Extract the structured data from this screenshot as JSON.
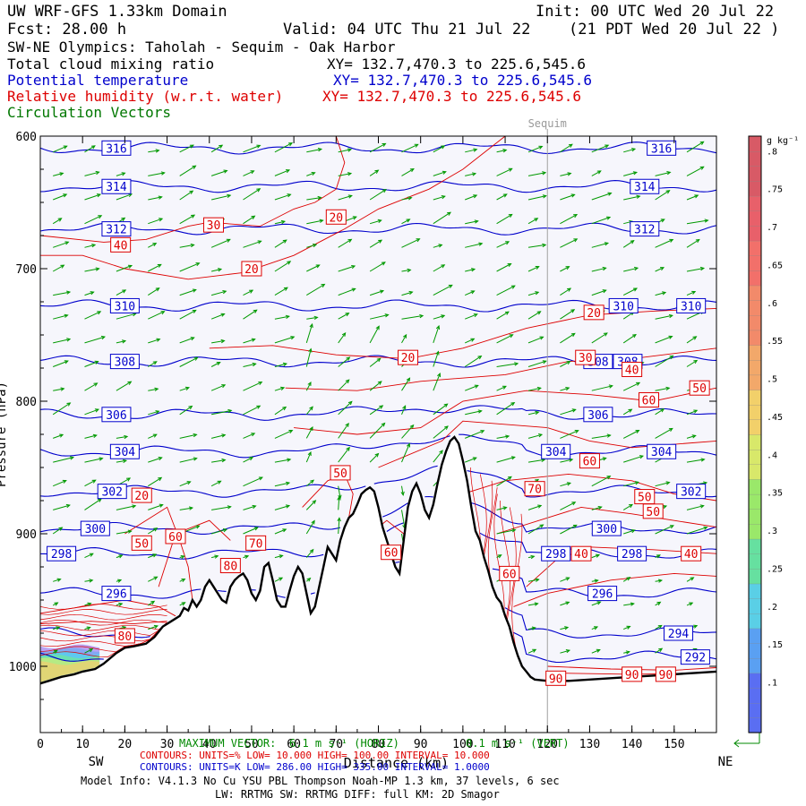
{
  "header": {
    "title": "UW WRF-GFS 1.33km Domain",
    "init": "Init: 00 UTC Wed 20 Jul 22",
    "fcst": "Fcst:   28.00 h",
    "valid": "Valid: 04 UTC Thu 21 Jul 22",
    "valid_local": "(21 PDT Wed 20 Jul 22  )",
    "cross_section": "SW-NE Olympics: Taholah - Sequim - Oak Harbor",
    "fields": [
      {
        "name": "Total cloud mixing ratio",
        "xy": "XY= 132.7,470.3 to 225.6,545.6",
        "color": "#000000"
      },
      {
        "name": "Potential temperature",
        "xy": "XY= 132.7,470.3 to 225.6,545.6",
        "color": "#0000cc"
      },
      {
        "name": "Relative humidity (w.r.t. water)",
        "xy": "XY= 132.7,470.3 to 225.6,545.6",
        "color": "#dd0000"
      },
      {
        "name": "Circulation Vectors",
        "xy": "",
        "color": "#007700"
      }
    ]
  },
  "chart_data": {
    "type": "cross-section",
    "marker_label": "Sequim",
    "marker_x": 120,
    "xlim": [
      0,
      160
    ],
    "ylim_hpa": [
      1050,
      600
    ],
    "x_ticks": [
      0,
      10,
      20,
      30,
      40,
      50,
      60,
      70,
      80,
      90,
      100,
      110,
      120,
      130,
      140,
      150
    ],
    "y_ticks": [
      {
        "value": 600,
        "label": "600"
      },
      {
        "value": 700,
        "label": "700"
      },
      {
        "value": 800,
        "label": "800"
      },
      {
        "value": 900,
        "label": "900"
      },
      {
        "value": 1000,
        "label": "1000"
      }
    ],
    "xlabel": "Distance (km)",
    "ylabel": "Pressure (hPa)",
    "left_end": "SW",
    "right_end": "NE",
    "colorbar": {
      "unit": "g kg⁻¹",
      "labels": [
        ".1",
        ".15",
        ".2",
        ".25",
        ".3",
        ".35",
        ".4",
        ".45",
        ".5",
        ".55",
        ".6",
        ".65",
        ".7",
        ".75",
        ".8"
      ]
    },
    "terrain_hpa": [
      [
        0,
        1013
      ],
      [
        2,
        1011
      ],
      [
        5,
        1008
      ],
      [
        8,
        1006
      ],
      [
        10,
        1004
      ],
      [
        13,
        1002
      ],
      [
        15,
        998
      ],
      [
        18,
        990
      ],
      [
        20,
        986
      ],
      [
        22,
        985
      ],
      [
        25,
        983
      ],
      [
        27,
        978
      ],
      [
        29,
        970
      ],
      [
        31,
        966
      ],
      [
        33,
        962
      ],
      [
        34,
        956
      ],
      [
        35,
        958
      ],
      [
        36,
        950
      ],
      [
        37,
        955
      ],
      [
        38,
        950
      ],
      [
        39,
        940
      ],
      [
        40,
        935
      ],
      [
        41,
        940
      ],
      [
        42,
        945
      ],
      [
        43,
        950
      ],
      [
        44,
        952
      ],
      [
        45,
        940
      ],
      [
        46,
        935
      ],
      [
        47,
        932
      ],
      [
        48,
        930
      ],
      [
        49,
        935
      ],
      [
        50,
        945
      ],
      [
        51,
        950
      ],
      [
        52,
        943
      ],
      [
        53,
        925
      ],
      [
        54,
        922
      ],
      [
        55,
        935
      ],
      [
        56,
        950
      ],
      [
        57,
        955
      ],
      [
        58,
        955
      ],
      [
        59,
        943
      ],
      [
        60,
        932
      ],
      [
        61,
        925
      ],
      [
        62,
        930
      ],
      [
        63,
        945
      ],
      [
        64,
        960
      ],
      [
        65,
        955
      ],
      [
        66,
        940
      ],
      [
        67,
        925
      ],
      [
        68,
        910
      ],
      [
        69,
        915
      ],
      [
        70,
        920
      ],
      [
        71,
        905
      ],
      [
        72,
        895
      ],
      [
        73,
        888
      ],
      [
        74,
        885
      ],
      [
        75,
        878
      ],
      [
        76,
        870
      ],
      [
        77,
        867
      ],
      [
        78,
        865
      ],
      [
        79,
        868
      ],
      [
        80,
        880
      ],
      [
        81,
        895
      ],
      [
        82,
        905
      ],
      [
        83,
        915
      ],
      [
        84,
        925
      ],
      [
        85,
        930
      ],
      [
        86,
        905
      ],
      [
        87,
        880
      ],
      [
        88,
        868
      ],
      [
        89,
        862
      ],
      [
        90,
        870
      ],
      [
        91,
        882
      ],
      [
        92,
        888
      ],
      [
        93,
        878
      ],
      [
        94,
        862
      ],
      [
        95,
        848
      ],
      [
        96,
        838
      ],
      [
        97,
        830
      ],
      [
        98,
        827
      ],
      [
        99,
        832
      ],
      [
        100,
        845
      ],
      [
        101,
        860
      ],
      [
        102,
        880
      ],
      [
        103,
        898
      ],
      [
        104,
        905
      ],
      [
        105,
        918
      ],
      [
        106,
        928
      ],
      [
        107,
        940
      ],
      [
        108,
        948
      ],
      [
        109,
        952
      ],
      [
        110,
        962
      ],
      [
        111,
        970
      ],
      [
        112,
        982
      ],
      [
        113,
        992
      ],
      [
        114,
        1000
      ],
      [
        115,
        1004
      ],
      [
        116,
        1008
      ],
      [
        117,
        1010
      ],
      [
        120,
        1011
      ],
      [
        125,
        1011
      ],
      [
        130,
        1010
      ],
      [
        135,
        1009
      ],
      [
        140,
        1008
      ],
      [
        145,
        1007
      ],
      [
        150,
        1006
      ],
      [
        155,
        1005
      ],
      [
        160,
        1004
      ]
    ],
    "theta_contours": [
      {
        "value": 316,
        "label": "316",
        "p": 609,
        "labels_at": [
          18,
          147
        ]
      },
      {
        "value": 314,
        "label": "314",
        "p": 638,
        "labels_at": [
          18,
          143
        ]
      },
      {
        "value": 312,
        "label": "312",
        "p": 670,
        "labels_at": [
          18,
          143
        ]
      },
      {
        "value": 310,
        "label": "310",
        "p": 728,
        "labels_at": [
          20,
          138,
          154
        ]
      },
      {
        "value": 308,
        "label": "308",
        "p": 770,
        "labels_at": [
          20,
          132,
          139
        ]
      },
      {
        "value": 306,
        "label": "306",
        "p": 810,
        "labels_at": [
          18,
          132
        ]
      },
      {
        "value": 304,
        "label": "304",
        "p": 838,
        "labels_at": [
          20,
          122,
          147
        ]
      },
      {
        "value": 302,
        "label": "302",
        "p": 868,
        "labels_at": [
          17,
          154
        ]
      },
      {
        "value": 300,
        "label": "300",
        "p": 896,
        "labels_at": [
          13,
          134
        ]
      },
      {
        "value": 298,
        "label": "298",
        "p": 915,
        "labels_at": [
          5,
          140,
          122
        ]
      },
      {
        "value": 296,
        "label": "296",
        "p": 945,
        "labels_at": [
          18,
          133
        ]
      },
      {
        "value": 294,
        "label": "294",
        "p": 975,
        "labels_at": [
          151
        ]
      },
      {
        "value": 292,
        "label": "292",
        "p": 993,
        "labels_at": [
          155
        ]
      }
    ],
    "rh_labels": [
      {
        "label": "30",
        "x": 41,
        "p": 667
      },
      {
        "label": "40",
        "x": 19,
        "p": 682
      },
      {
        "label": "20",
        "x": 70,
        "p": 661
      },
      {
        "label": "20",
        "x": 50,
        "p": 700
      },
      {
        "label": "20",
        "x": 87,
        "p": 767
      },
      {
        "label": "20",
        "x": 131,
        "p": 733
      },
      {
        "label": "30",
        "x": 129,
        "p": 767
      },
      {
        "label": "40",
        "x": 140,
        "p": 776
      },
      {
        "label": "50",
        "x": 156,
        "p": 790
      },
      {
        "label": "60",
        "x": 144,
        "p": 799
      },
      {
        "label": "60",
        "x": 130,
        "p": 845
      },
      {
        "label": "50",
        "x": 143,
        "p": 872
      },
      {
        "label": "50",
        "x": 145,
        "p": 883
      },
      {
        "label": "40",
        "x": 128,
        "p": 915
      },
      {
        "label": "40",
        "x": 154,
        "p": 915
      },
      {
        "label": "70",
        "x": 117,
        "p": 866
      },
      {
        "label": "60",
        "x": 111,
        "p": 930
      },
      {
        "label": "50",
        "x": 71,
        "p": 854
      },
      {
        "label": "60",
        "x": 83,
        "p": 914
      },
      {
        "label": "70",
        "x": 51,
        "p": 907
      },
      {
        "label": "80",
        "x": 45,
        "p": 924
      },
      {
        "label": "20",
        "x": 24,
        "p": 871
      },
      {
        "label": "50",
        "x": 24,
        "p": 907
      },
      {
        "label": "60",
        "x": 32,
        "p": 902
      },
      {
        "label": "80",
        "x": 20,
        "p": 977
      },
      {
        "label": "90",
        "x": 140,
        "p": 1006
      },
      {
        "label": "90",
        "x": 148,
        "p": 1006
      },
      {
        "label": "90",
        "x": 122,
        "p": 1009
      }
    ],
    "cloud_region": {
      "x_range": [
        0,
        14
      ],
      "p_range": [
        985,
        1005
      ]
    },
    "vector_grid": {
      "x_step": 10,
      "p_step": 25,
      "max_vector_label": "MAXIMUM VECTOR:",
      "horiz": "6.1 m s⁻¹ (HORIZ)",
      "vert": "0.1 m s⁻¹ (VERT)"
    }
  },
  "footer": {
    "rh_contours": "CONTOURS:  UNITS=%  LOW=  10.000        HIGH=  100.00       INTERVAL=   10.000",
    "theta_contours": "CONTOURS:  UNITS=K  LOW=  286.00        HIGH=  335.00       INTERVAL=   1.0000",
    "model_info": "Model Info: V4.1.3    No Cu    YSU PBL  Thompson     Noah-MP    1.3 km,  37 levels,    6 sec",
    "model_info2": "LW: RRTMG SW: RRTMG    DIFF: full    KM: 2D Smagor"
  }
}
